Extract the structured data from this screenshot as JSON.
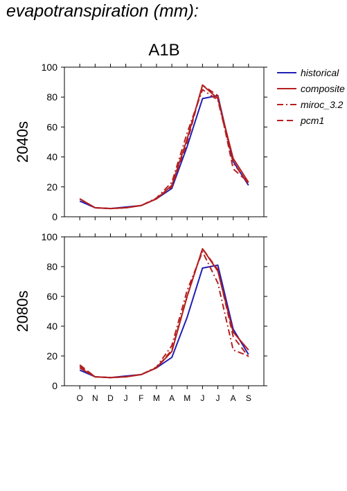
{
  "header": {
    "title": "evapotranspiration (mm):"
  },
  "chart_data": {
    "type": "line",
    "scenario": "A1B",
    "categories": [
      "O",
      "N",
      "D",
      "J",
      "F",
      "M",
      "A",
      "M",
      "J",
      "J",
      "A",
      "S"
    ],
    "ylim": [
      0,
      100
    ],
    "yticks": [
      0,
      20,
      40,
      60,
      80,
      100
    ],
    "legend": {
      "placement": "top-right",
      "entries": [
        {
          "name": "historical",
          "color": "#1f1fb4",
          "dash": "solid"
        },
        {
          "name": "composite",
          "color": "#b41f1f",
          "dash": "solid"
        },
        {
          "name": "miroc_3.2",
          "color": "#b41f1f",
          "dash": "dashdot"
        },
        {
          "name": "pcm1",
          "color": "#b41f1f",
          "dash": "dashed"
        }
      ]
    },
    "panels": [
      {
        "label": "2040s",
        "series": [
          {
            "name": "historical",
            "values": [
              10.5,
              6,
              5.5,
              6.5,
              7.5,
              12,
              19,
              47,
              79,
              81,
              37,
              21
            ]
          },
          {
            "name": "composite",
            "values": [
              12,
              6,
              5.5,
              6,
              7.5,
              12,
              21,
              52,
              88,
              79,
              39,
              23
            ]
          },
          {
            "name": "miroc_3.2",
            "values": [
              12,
              6,
              5.5,
              6,
              7.5,
              12.5,
              23,
              56,
              85,
              78,
              36,
              22
            ]
          },
          {
            "name": "pcm1",
            "values": [
              12,
              6,
              5.5,
              6,
              7.5,
              12,
              20,
              50,
              88,
              81,
              32,
              23
            ]
          }
        ]
      },
      {
        "label": "2080s",
        "series": [
          {
            "name": "historical",
            "values": [
              10.5,
              6,
              5.5,
              6.5,
              7.5,
              12,
              19,
              46,
              79,
              81,
              38,
              21
            ]
          },
          {
            "name": "composite",
            "values": [
              12,
              6,
              5.5,
              6,
              7.5,
              12,
              23,
              60,
              92,
              77,
              36,
              24
            ]
          },
          {
            "name": "miroc_3.2",
            "values": [
              13,
              6,
              5.5,
              6,
              7.5,
              12.5,
              27,
              64,
              90,
              69,
              24,
              20
            ]
          },
          {
            "name": "pcm1",
            "values": [
              14,
              6,
              5.5,
              6,
              7.5,
              12,
              24,
              60,
              92,
              78,
              33,
              19.5
            ]
          }
        ]
      }
    ]
  }
}
